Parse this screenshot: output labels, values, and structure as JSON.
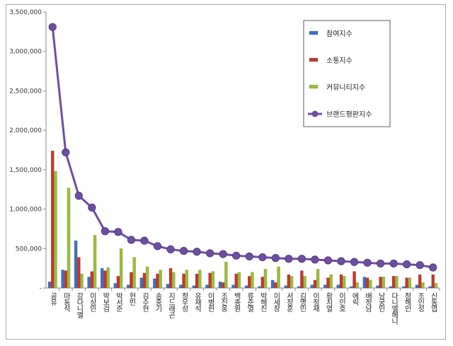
{
  "chart_data": {
    "type": "bar",
    "categories": [
      "공유",
      "마동석",
      "강다니엘",
      "이상민",
      "박보검",
      "박서준",
      "현빈",
      "김수현",
      "송중기",
      "지드래곤",
      "정우성",
      "유재석",
      "이병헌",
      "조진웅",
      "백종원",
      "류준열",
      "박해진",
      "이세창",
      "서장훈",
      "김명민",
      "이정재",
      "황치열",
      "이민호",
      "에릭",
      "배정남",
      "남궁민",
      "다니엘헤니",
      "정해인",
      "조인성",
      "신동엽"
    ],
    "series": [
      {
        "name": "참여지수",
        "color": "#3f6fc4",
        "kind": "bar",
        "values": [
          80000,
          230000,
          600000,
          140000,
          250000,
          60000,
          40000,
          130000,
          120000,
          50000,
          40000,
          30000,
          40000,
          80000,
          40000,
          30000,
          20000,
          100000,
          30000,
          20000,
          40000,
          40000,
          40000,
          20000,
          140000,
          30000,
          20000,
          20000,
          40000,
          20000
        ]
      },
      {
        "name": "소통지수",
        "color": "#c0392b",
        "kind": "bar",
        "values": [
          1740000,
          220000,
          390000,
          210000,
          220000,
          150000,
          200000,
          190000,
          180000,
          250000,
          180000,
          180000,
          190000,
          70000,
          180000,
          150000,
          140000,
          70000,
          170000,
          220000,
          100000,
          130000,
          170000,
          210000,
          130000,
          140000,
          150000,
          130000,
          170000,
          170000
        ]
      },
      {
        "name": "커뮤니티지수",
        "color": "#9bbb3c",
        "kind": "bar",
        "values": [
          1480000,
          1270000,
          180000,
          670000,
          260000,
          500000,
          390000,
          270000,
          230000,
          200000,
          230000,
          230000,
          210000,
          330000,
          200000,
          200000,
          240000,
          270000,
          150000,
          150000,
          240000,
          170000,
          150000,
          70000,
          100000,
          140000,
          150000,
          130000,
          70000,
          60000
        ]
      },
      {
        "name": "브랜드평판지수",
        "color": "#6d4ea0",
        "kind": "line",
        "values": [
          3310000,
          1720000,
          1170000,
          1020000,
          720000,
          710000,
          610000,
          600000,
          530000,
          490000,
          470000,
          460000,
          440000,
          430000,
          410000,
          400000,
          390000,
          380000,
          370000,
          370000,
          360000,
          350000,
          340000,
          330000,
          320000,
          310000,
          310000,
          300000,
          290000,
          260000
        ]
      }
    ],
    "y_ticks": [
      "-",
      "500,000",
      "1,000,000",
      "1,500,000",
      "2,000,000",
      "2,500,000",
      "3,000,000",
      "3,500,000"
    ],
    "ylim": [
      0,
      3500000
    ],
    "grid": false,
    "legend_position": "top-right",
    "title": "",
    "xlabel": "",
    "ylabel": ""
  }
}
